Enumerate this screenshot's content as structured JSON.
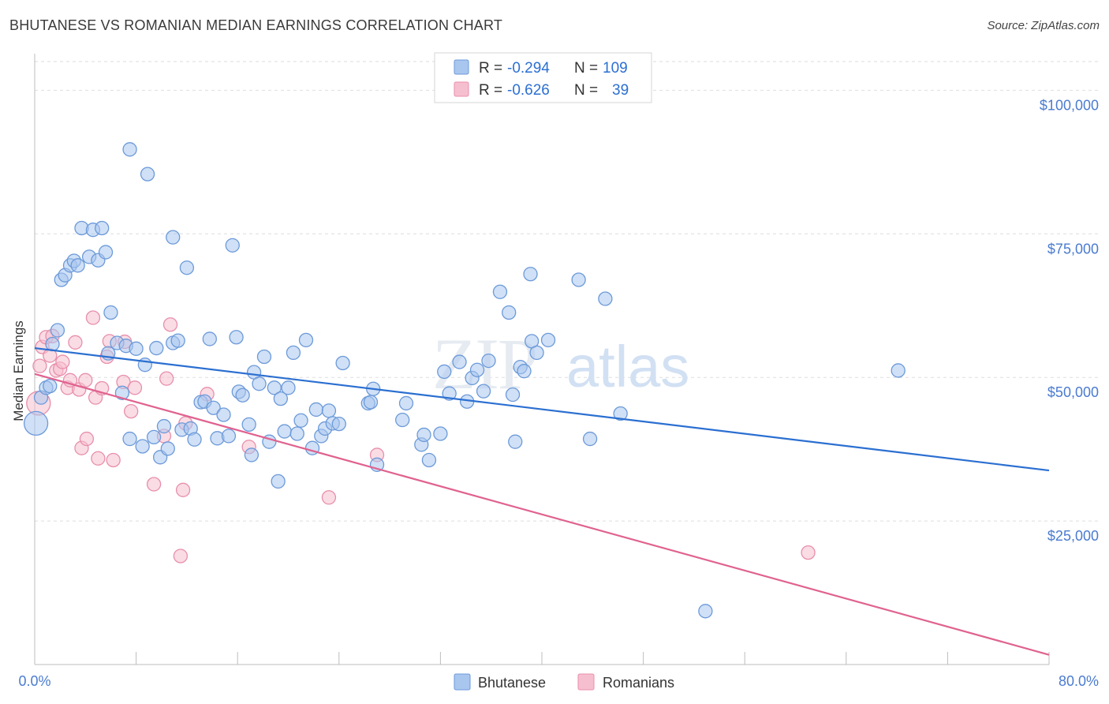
{
  "title": "BHUTANESE VS ROMANIAN MEDIAN EARNINGS CORRELATION CHART",
  "source": "Source: ZipAtlas.com",
  "colors": {
    "blue_fill": "#a9c6ef",
    "blue_stroke": "#6c9ad9",
    "blue_line": "#2b6fd1",
    "pink_fill": "#f6bfd0",
    "pink_stroke": "#e88fab",
    "pink_line": "#e0628f",
    "axis_text": "#4a7bd0",
    "grid": "#dedede"
  },
  "legend": {
    "rows": [
      {
        "r_label": "R =",
        "r_value": "-0.294",
        "n_label": "N =",
        "n_value": "109"
      },
      {
        "r_label": "R =",
        "r_value": "-0.626",
        "n_label": "N =",
        "n_value": "39"
      }
    ]
  },
  "watermark": {
    "zip": "ZIP",
    "atlas": "atlas"
  },
  "chart_data": {
    "type": "scatter",
    "title": "BHUTANESE VS ROMANIAN MEDIAN EARNINGS CORRELATION CHART",
    "xlabel": "",
    "ylabel": "Median Earnings",
    "xlim": [
      0,
      80
    ],
    "ylim": [
      0,
      105000
    ],
    "x_tick_labels": [
      "0.0%",
      "80.0%"
    ],
    "y_ticks": [
      25000,
      50000,
      75000,
      100000
    ],
    "y_tick_labels": [
      "$25,000",
      "$50,000",
      "$75,000",
      "$100,000"
    ],
    "grid": true,
    "legend_position": "top-center",
    "series": [
      {
        "name": "Bhutanese",
        "r": -0.294,
        "n": 109,
        "trend": {
          "x": [
            0,
            80
          ],
          "y": [
            55100,
            33800
          ]
        },
        "points": [
          [
            0.1,
            42000,
            3
          ],
          [
            0.5,
            46500,
            1
          ],
          [
            0.9,
            48200,
            1
          ],
          [
            1.2,
            48500,
            1
          ],
          [
            1.4,
            55800,
            1
          ],
          [
            1.8,
            58200,
            1
          ],
          [
            2.1,
            67000,
            1
          ],
          [
            2.4,
            67800,
            1
          ],
          [
            2.8,
            69500,
            1
          ],
          [
            3.1,
            70300,
            1
          ],
          [
            3.4,
            69500,
            1
          ],
          [
            3.7,
            76000,
            1
          ],
          [
            4.3,
            71000,
            1
          ],
          [
            4.6,
            75700,
            1
          ],
          [
            5.0,
            70400,
            1
          ],
          [
            5.3,
            76000,
            1
          ],
          [
            5.6,
            71800,
            1
          ],
          [
            5.8,
            54200,
            1
          ],
          [
            6.0,
            61300,
            1
          ],
          [
            6.5,
            56000,
            1
          ],
          [
            6.9,
            47300,
            1
          ],
          [
            7.2,
            55500,
            1
          ],
          [
            7.5,
            39300,
            1
          ],
          [
            7.5,
            89700,
            1
          ],
          [
            8.0,
            55000,
            1
          ],
          [
            8.5,
            38000,
            1
          ],
          [
            8.7,
            52200,
            1
          ],
          [
            8.9,
            85400,
            1
          ],
          [
            9.4,
            39600,
            1
          ],
          [
            9.6,
            55100,
            1
          ],
          [
            9.9,
            36100,
            1
          ],
          [
            10.2,
            41500,
            1
          ],
          [
            10.5,
            37600,
            1
          ],
          [
            10.9,
            56000,
            1
          ],
          [
            10.9,
            74400,
            1
          ],
          [
            11.3,
            56400,
            1
          ],
          [
            11.6,
            40900,
            1
          ],
          [
            12.0,
            69100,
            1
          ],
          [
            12.3,
            41100,
            1
          ],
          [
            12.6,
            39200,
            1
          ],
          [
            13.1,
            45700,
            1
          ],
          [
            13.4,
            45800,
            1
          ],
          [
            13.8,
            56700,
            1
          ],
          [
            14.1,
            44700,
            1
          ],
          [
            14.4,
            39400,
            1
          ],
          [
            14.9,
            43500,
            1
          ],
          [
            15.3,
            39800,
            1
          ],
          [
            15.6,
            73000,
            1
          ],
          [
            15.9,
            57000,
            1
          ],
          [
            16.1,
            47500,
            1
          ],
          [
            16.4,
            46900,
            1
          ],
          [
            16.9,
            41800,
            1
          ],
          [
            17.1,
            36500,
            1
          ],
          [
            17.3,
            50900,
            1
          ],
          [
            17.7,
            48900,
            1
          ],
          [
            18.1,
            53600,
            1
          ],
          [
            18.5,
            38800,
            1
          ],
          [
            18.9,
            48200,
            1
          ],
          [
            19.2,
            31900,
            1
          ],
          [
            19.4,
            46300,
            1
          ],
          [
            19.7,
            40600,
            1
          ],
          [
            20.0,
            48200,
            1
          ],
          [
            20.4,
            54300,
            1
          ],
          [
            20.7,
            40200,
            1
          ],
          [
            21.0,
            42500,
            1
          ],
          [
            21.4,
            56500,
            1
          ],
          [
            21.9,
            37700,
            1
          ],
          [
            22.2,
            44400,
            1
          ],
          [
            22.6,
            39800,
            1
          ],
          [
            22.9,
            41100,
            1
          ],
          [
            23.2,
            44200,
            1
          ],
          [
            23.5,
            42000,
            1
          ],
          [
            24.0,
            41900,
            1
          ],
          [
            24.3,
            52500,
            1
          ],
          [
            26.3,
            45500,
            1
          ],
          [
            26.5,
            45700,
            1
          ],
          [
            26.7,
            48000,
            1
          ],
          [
            27.0,
            34800,
            1
          ],
          [
            29.0,
            42600,
            1
          ],
          [
            29.3,
            45500,
            1
          ],
          [
            30.5,
            38300,
            1
          ],
          [
            30.7,
            40000,
            1
          ],
          [
            31.1,
            35600,
            1
          ],
          [
            32.0,
            40200,
            1
          ],
          [
            32.3,
            51000,
            1
          ],
          [
            32.7,
            47200,
            1
          ],
          [
            33.5,
            52700,
            1
          ],
          [
            34.1,
            45800,
            1
          ],
          [
            34.5,
            49900,
            1
          ],
          [
            34.9,
            51300,
            1
          ],
          [
            35.4,
            47600,
            1
          ],
          [
            35.8,
            52900,
            1
          ],
          [
            36.7,
            64900,
            1
          ],
          [
            37.4,
            61300,
            1
          ],
          [
            37.7,
            47000,
            1
          ],
          [
            37.9,
            38800,
            1
          ],
          [
            38.3,
            51800,
            1
          ],
          [
            38.6,
            51100,
            1
          ],
          [
            39.1,
            68000,
            1
          ],
          [
            39.2,
            56300,
            1
          ],
          [
            39.6,
            54300,
            1
          ],
          [
            40.5,
            56500,
            1
          ],
          [
            42.9,
            67000,
            1
          ],
          [
            43.8,
            39300,
            1
          ],
          [
            45.0,
            63700,
            1
          ],
          [
            46.2,
            43700,
            1
          ],
          [
            52.9,
            9300,
            1
          ],
          [
            68.1,
            51200,
            1
          ]
        ]
      },
      {
        "name": "Romanians",
        "r": -0.626,
        "n": 39,
        "trend": {
          "x": [
            0,
            80
          ],
          "y": [
            50600,
            1700
          ]
        },
        "points": [
          [
            0.3,
            45500,
            3
          ],
          [
            0.4,
            52000,
            1
          ],
          [
            0.6,
            55300,
            1
          ],
          [
            0.9,
            57000,
            1
          ],
          [
            1.2,
            53800,
            1
          ],
          [
            1.4,
            57200,
            1
          ],
          [
            1.7,
            51200,
            1
          ],
          [
            2.0,
            51500,
            1
          ],
          [
            2.2,
            52700,
            1
          ],
          [
            2.6,
            48200,
            1
          ],
          [
            2.8,
            49500,
            1
          ],
          [
            3.2,
            56100,
            1
          ],
          [
            3.5,
            47900,
            1
          ],
          [
            3.7,
            37700,
            1
          ],
          [
            4.0,
            49500,
            1
          ],
          [
            4.1,
            39300,
            1
          ],
          [
            4.6,
            60400,
            1
          ],
          [
            4.8,
            46500,
            1
          ],
          [
            5.0,
            35900,
            1
          ],
          [
            5.3,
            48100,
            1
          ],
          [
            5.7,
            53600,
            1
          ],
          [
            5.9,
            56300,
            1
          ],
          [
            6.2,
            35600,
            1
          ],
          [
            7.1,
            56200,
            1
          ],
          [
            7.0,
            49200,
            1
          ],
          [
            7.6,
            44100,
            1
          ],
          [
            7.9,
            48200,
            1
          ],
          [
            9.4,
            31400,
            1
          ],
          [
            10.2,
            39800,
            1
          ],
          [
            10.4,
            49800,
            1
          ],
          [
            10.7,
            59200,
            1
          ],
          [
            11.5,
            18900,
            1
          ],
          [
            11.7,
            30400,
            1
          ],
          [
            11.9,
            42000,
            1
          ],
          [
            13.6,
            47100,
            1
          ],
          [
            16.9,
            37900,
            1
          ],
          [
            27.0,
            36500,
            1
          ],
          [
            23.2,
            29100,
            1
          ],
          [
            61.0,
            19500,
            1
          ]
        ]
      }
    ]
  }
}
